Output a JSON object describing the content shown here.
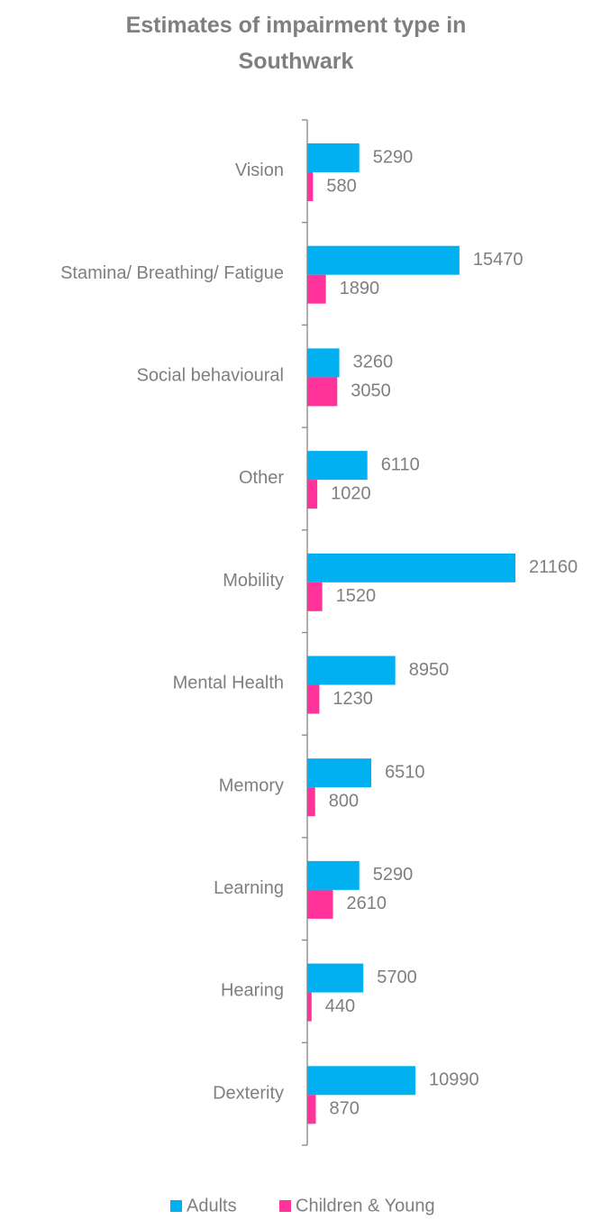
{
  "chart_data": {
    "type": "bar",
    "orientation": "horizontal",
    "title": "Estimates of impairment type in Southwark",
    "categories": [
      "Vision",
      "Stamina/ Breathing/ Fatigue",
      "Social behavioural",
      "Other",
      "Mobility",
      "Mental Health",
      "Memory",
      "Learning",
      "Hearing",
      "Dexterity"
    ],
    "series": [
      {
        "name": "Adults",
        "color": "#00b0f0",
        "values": [
          5290,
          15470,
          3260,
          6110,
          21160,
          8950,
          6510,
          5290,
          5700,
          10990
        ]
      },
      {
        "name": "Children & Young",
        "color": "#ff3399",
        "values": [
          580,
          1890,
          3050,
          1020,
          1520,
          1230,
          800,
          2610,
          440,
          870
        ]
      }
    ],
    "legend": "bottom"
  }
}
